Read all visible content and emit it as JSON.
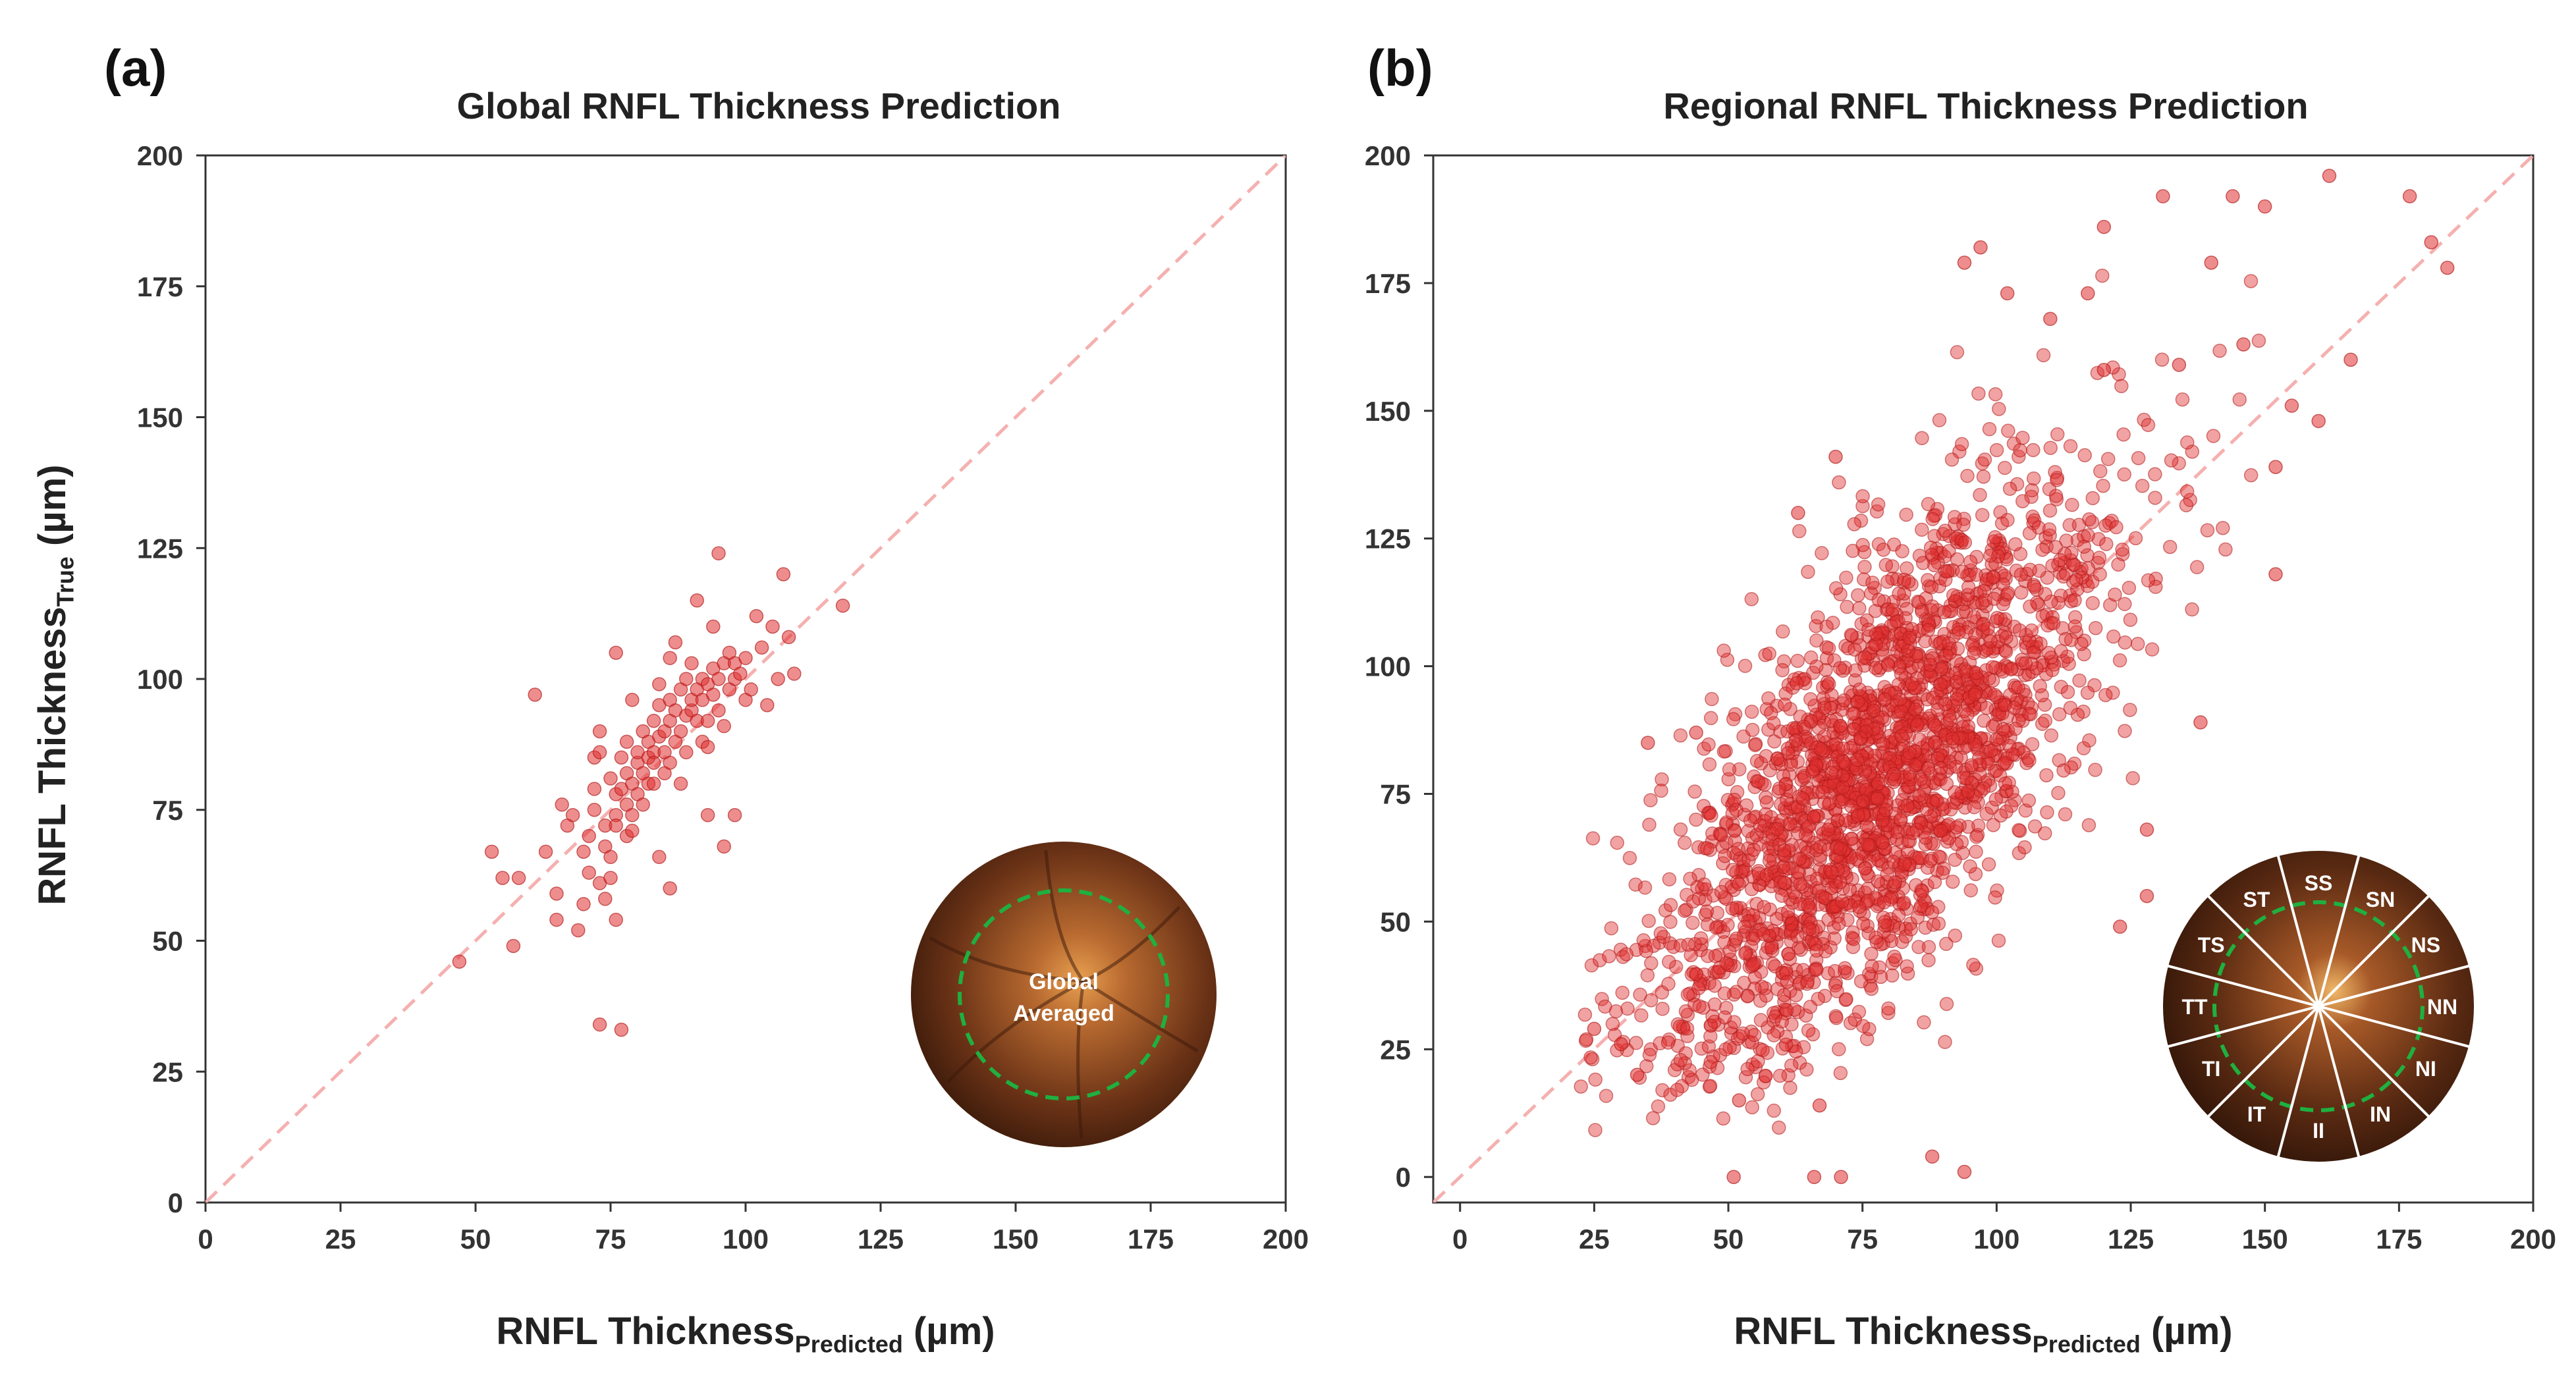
{
  "panels": {
    "a": {
      "letter": "(a)",
      "title": "Global RNFL Thickness Prediction",
      "xlabel_main": "RNFL Thickness",
      "xlabel_sub": "Predicted",
      "xlabel_unit": " (µm)",
      "ylabel_main": "RNFL Thickness",
      "ylabel_sub": "True",
      "ylabel_unit": " (µm)",
      "inset_text_line1": "Global",
      "inset_text_line2": "Averaged"
    },
    "b": {
      "letter": "(b)",
      "title": "Regional RNFL Thickness Prediction",
      "xlabel_main": "RNFL Thickness",
      "xlabel_sub": "Predicted",
      "xlabel_unit": " (µm)",
      "inset_sectors": [
        "SS",
        "SN",
        "NS",
        "NN",
        "NI",
        "IN",
        "II",
        "IT",
        "TI",
        "TT",
        "TS",
        "ST"
      ]
    }
  },
  "colors": {
    "point_fill": "#e03030",
    "point_stroke": "#b01818",
    "identity_line": "#f5b0b0",
    "inset_ring": "#1fb040",
    "fundus_outer": "#5a2a14",
    "fundus_inner": "#c8782e"
  },
  "chart_data": [
    {
      "type": "scatter",
      "title": "Global RNFL Thickness Prediction",
      "xlabel": "RNFL Thickness Predicted (µm)",
      "ylabel": "RNFL Thickness True (µm)",
      "xlim": [
        0,
        200
      ],
      "ylim": [
        0,
        200
      ],
      "xticks": [
        0,
        25,
        50,
        75,
        100,
        125,
        150,
        175,
        200
      ],
      "yticks": [
        0,
        25,
        50,
        75,
        100,
        125,
        150,
        175,
        200
      ],
      "identity_line": true,
      "grid": false,
      "points": [
        [
          47,
          46
        ],
        [
          53,
          67
        ],
        [
          55,
          62
        ],
        [
          57,
          49
        ],
        [
          58,
          62
        ],
        [
          61,
          97
        ],
        [
          63,
          67
        ],
        [
          65,
          59
        ],
        [
          65,
          54
        ],
        [
          66,
          76
        ],
        [
          67,
          72
        ],
        [
          68,
          74
        ],
        [
          69,
          52
        ],
        [
          70,
          57
        ],
        [
          70,
          67
        ],
        [
          71,
          63
        ],
        [
          71,
          70
        ],
        [
          72,
          75
        ],
        [
          72,
          79
        ],
        [
          72,
          85
        ],
        [
          73,
          34
        ],
        [
          73,
          86
        ],
        [
          73,
          90
        ],
        [
          73,
          61
        ],
        [
          74,
          68
        ],
        [
          74,
          72
        ],
        [
          74,
          58
        ],
        [
          75,
          81
        ],
        [
          75,
          66
        ],
        [
          75,
          62
        ],
        [
          76,
          74
        ],
        [
          76,
          78
        ],
        [
          76,
          72
        ],
        [
          76,
          105
        ],
        [
          76,
          54
        ],
        [
          77,
          85
        ],
        [
          77,
          79
        ],
        [
          77,
          33
        ],
        [
          78,
          70
        ],
        [
          78,
          76
        ],
        [
          78,
          82
        ],
        [
          78,
          88
        ],
        [
          79,
          74
        ],
        [
          79,
          80
        ],
        [
          79,
          96
        ],
        [
          80,
          84
        ],
        [
          80,
          86
        ],
        [
          80,
          78
        ],
        [
          81,
          82
        ],
        [
          81,
          90
        ],
        [
          81,
          76
        ],
        [
          82,
          85
        ],
        [
          82,
          88
        ],
        [
          82,
          80
        ],
        [
          83,
          92
        ],
        [
          83,
          86
        ],
        [
          83,
          84
        ],
        [
          84,
          89
        ],
        [
          84,
          95
        ],
        [
          84,
          99
        ],
        [
          84,
          66
        ],
        [
          85,
          82
        ],
        [
          85,
          86
        ],
        [
          85,
          90
        ],
        [
          86,
          84
        ],
        [
          86,
          92
        ],
        [
          86,
          104
        ],
        [
          86,
          60
        ],
        [
          86,
          96
        ],
        [
          87,
          88
        ],
        [
          87,
          94
        ],
        [
          87,
          107
        ],
        [
          88,
          80
        ],
        [
          88,
          90
        ],
        [
          88,
          98
        ],
        [
          89,
          93
        ],
        [
          89,
          86
        ],
        [
          89,
          100
        ],
        [
          90,
          94
        ],
        [
          90,
          96
        ],
        [
          90,
          103
        ],
        [
          91,
          92
        ],
        [
          91,
          98
        ],
        [
          91,
          115
        ],
        [
          92,
          96
        ],
        [
          92,
          100
        ],
        [
          92,
          88
        ],
        [
          93,
          99
        ],
        [
          93,
          92
        ],
        [
          93,
          74
        ],
        [
          94,
          102
        ],
        [
          94,
          97
        ],
        [
          94,
          110
        ],
        [
          95,
          100
        ],
        [
          95,
          124
        ],
        [
          95,
          94
        ],
        [
          96,
          103
        ],
        [
          96,
          91
        ],
        [
          96,
          68
        ],
        [
          97,
          105
        ],
        [
          97,
          98
        ],
        [
          98,
          103
        ],
        [
          98,
          100
        ],
        [
          98,
          74
        ],
        [
          99,
          101
        ],
        [
          100,
          104
        ],
        [
          100,
          96
        ],
        [
          101,
          98
        ],
        [
          102,
          112
        ],
        [
          103,
          106
        ],
        [
          104,
          95
        ],
        [
          105,
          110
        ],
        [
          106,
          100
        ],
        [
          107,
          120
        ],
        [
          108,
          108
        ],
        [
          109,
          101
        ],
        [
          118,
          114
        ],
        [
          93,
          87
        ],
        [
          83,
          80
        ],
        [
          79,
          71
        ]
      ]
    },
    {
      "type": "scatter",
      "title": "Regional RNFL Thickness Prediction",
      "xlabel": "RNFL Thickness Predicted (µm)",
      "ylabel": "",
      "xlim": [
        -5,
        200
      ],
      "ylim": [
        -5,
        200
      ],
      "xticks": [
        0,
        25,
        50,
        75,
        100,
        125,
        150,
        175,
        200
      ],
      "yticks": [
        0,
        25,
        50,
        75,
        100,
        125,
        150,
        175,
        200
      ],
      "identity_line": true,
      "grid": false,
      "cloud": {
        "n": 2400,
        "x_mean": 78,
        "y_mean": 78,
        "x_sd": 22,
        "y_sd": 30,
        "correlation": 0.72
      },
      "points": [
        [
          51,
          0
        ],
        [
          66,
          0
        ],
        [
          71,
          0
        ],
        [
          94,
          1
        ],
        [
          88,
          4
        ],
        [
          67,
          14
        ],
        [
          52,
          15
        ],
        [
          25,
          29
        ],
        [
          30,
          26
        ],
        [
          33,
          20
        ],
        [
          35,
          85
        ],
        [
          44,
          87
        ],
        [
          97,
          182
        ],
        [
          94,
          179
        ],
        [
          120,
          186
        ],
        [
          131,
          192
        ],
        [
          144,
          192
        ],
        [
          150,
          190
        ],
        [
          162,
          196
        ],
        [
          177,
          192
        ],
        [
          181,
          183
        ],
        [
          184,
          178
        ],
        [
          166,
          160
        ],
        [
          160,
          148
        ],
        [
          152,
          118
        ],
        [
          138,
          89
        ],
        [
          128,
          55
        ],
        [
          123,
          49
        ],
        [
          128,
          68
        ],
        [
          117,
          173
        ],
        [
          110,
          168
        ],
        [
          140,
          179
        ],
        [
          134,
          159
        ],
        [
          146,
          163
        ],
        [
          155,
          151
        ],
        [
          152,
          139
        ],
        [
          102,
          173
        ],
        [
          120,
          158
        ],
        [
          63,
          130
        ],
        [
          70,
          141
        ]
      ]
    }
  ]
}
